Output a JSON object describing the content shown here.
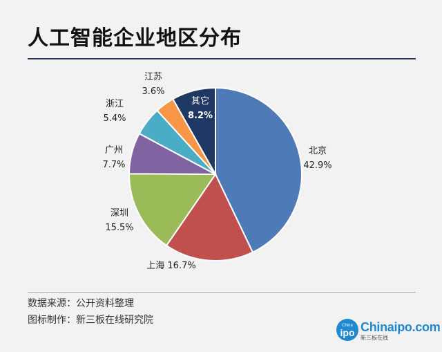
{
  "title": "人工智能企业地区分布",
  "source_line": "数据来源：公开资料整理",
  "maker_line": "图标制作：新三板在线研究院",
  "logo": {
    "brand": "Chinaipo.com",
    "badge": "ipo",
    "badge_small": "China",
    "sub": "新三板在线"
  },
  "chart_data": {
    "type": "pie",
    "start": "12 o'clock, clockwise",
    "slices": [
      {
        "label": "北京",
        "value": 42.9,
        "value_text": "42.9%",
        "color": "#4f7ab8"
      },
      {
        "label": "上海",
        "value": 16.7,
        "value_text": "16.7%",
        "color": "#c0504d"
      },
      {
        "label": "深圳",
        "value": 15.5,
        "value_text": "15.5%",
        "color": "#9bbb59"
      },
      {
        "label": "广州",
        "value": 7.7,
        "value_text": "7.7%",
        "color": "#8064a2"
      },
      {
        "label": "浙江",
        "value": 5.4,
        "value_text": "5.4%",
        "color": "#4bacc6"
      },
      {
        "label": "江苏",
        "value": 3.6,
        "value_text": "3.6%",
        "color": "#f79646"
      },
      {
        "label": "其它",
        "value": 8.2,
        "value_text": "8.2%",
        "color": "#1f3864"
      }
    ]
  }
}
